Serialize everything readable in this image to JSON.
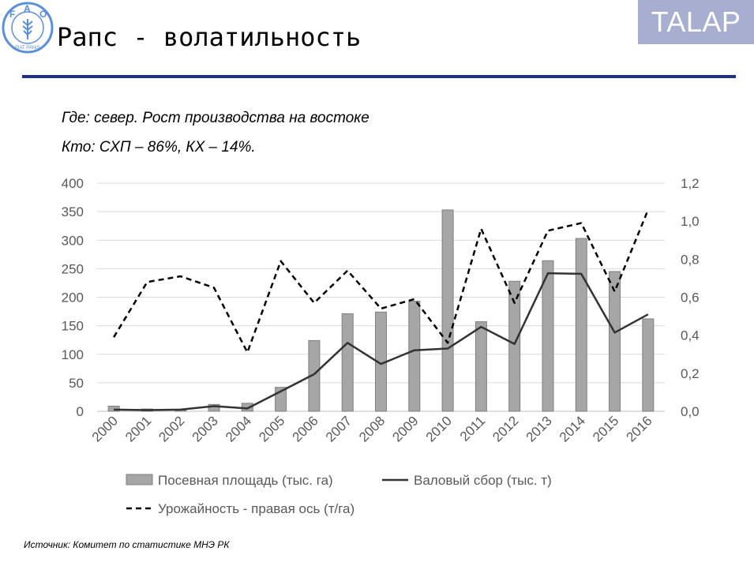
{
  "header": {
    "title": "Рапс  -  волатильность",
    "brand": "TALAP",
    "logo_text": "FIAT PANIS"
  },
  "notes": {
    "line1": "Где: север. Рост производства на востоке",
    "line2": "Кто: СХП – 86%, КХ – 14%."
  },
  "source": "Источник: Комитет по статистике МНЭ РК",
  "colors": {
    "rule": "#1f2f86",
    "brand_bg": "#a7aecf",
    "bar_fill": "#a6a6a6",
    "line": "#333333",
    "logo": "#5b8fd6"
  },
  "chart_data": {
    "type": "bar",
    "categories": [
      "2000",
      "2001",
      "2002",
      "2003",
      "2004",
      "2005",
      "2006",
      "2007",
      "2008",
      "2009",
      "2010",
      "2011",
      "2012",
      "2013",
      "2014",
      "2015",
      "2016"
    ],
    "left_axis": {
      "ylim": [
        0,
        400
      ],
      "ticks": [
        "400",
        "350",
        "300",
        "250",
        "200",
        "150",
        "100",
        "50",
        "0"
      ]
    },
    "right_axis": {
      "ylim": [
        0,
        1.2
      ],
      "ticks": [
        "1,2",
        "1,0",
        "0,8",
        "0,6",
        "0,4",
        "0,2",
        "0,0"
      ]
    },
    "grid": true,
    "legend_position": "bottom",
    "series": [
      {
        "name": "Посевная площадь (тыс. га)",
        "kind": "bar",
        "axis": "left",
        "values": [
          9,
          4,
          2,
          12,
          14,
          42,
          124,
          171,
          174,
          193,
          353,
          157,
          228,
          264,
          303,
          245,
          162
        ]
      },
      {
        "name": "Валовый сбор (тыс. т)",
        "kind": "line",
        "axis": "left",
        "values": [
          3,
          2,
          3,
          9,
          5,
          35,
          65,
          120,
          83,
          107,
          110,
          148,
          118,
          242,
          241,
          138,
          170
        ]
      },
      {
        "name": "Урожайность - правая ось (т/га)",
        "kind": "dashed-line",
        "axis": "right",
        "values": [
          0.39,
          0.68,
          0.71,
          0.65,
          0.31,
          0.79,
          0.57,
          0.74,
          0.54,
          0.59,
          0.36,
          0.96,
          0.57,
          0.95,
          0.99,
          0.63,
          1.06
        ]
      }
    ]
  }
}
